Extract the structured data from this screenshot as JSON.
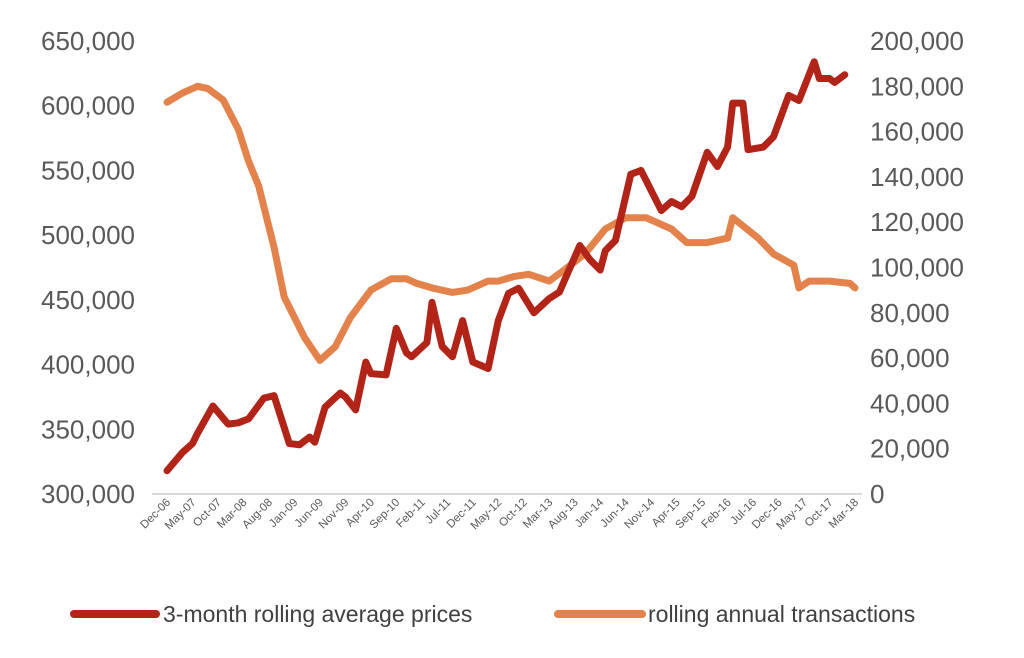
{
  "chart_data": {
    "type": "line",
    "x_tick_labels": [
      "Dec-06",
      "May-07",
      "Oct-07",
      "Mar-08",
      "Aug-08",
      "Jan-09",
      "Jun-09",
      "Nov-09",
      "Apr-10",
      "Sep-10",
      "Feb-11",
      "Jul-11",
      "Dec-11",
      "May-12",
      "Oct-12",
      "Mar-13",
      "Aug-13",
      "Jan-14",
      "Jun-14",
      "Nov-14",
      "Apr-15",
      "Sep-15",
      "Feb-16",
      "Jul-16",
      "Dec-16",
      "May-17",
      "Oct-17",
      "Mar-18"
    ],
    "x_range": [
      "2006-12",
      "2018-03"
    ],
    "y_left": {
      "min": 300000,
      "max": 650000,
      "step": 50000,
      "tick_labels": [
        "300,000",
        "350,000",
        "400,000",
        "450,000",
        "500,000",
        "550,000",
        "600,000",
        "650,000"
      ]
    },
    "y_right": {
      "min": 0,
      "max": 200000,
      "step": 20000,
      "tick_labels": [
        "0",
        "20,000",
        "40,000",
        "60,000",
        "80,000",
        "100,000",
        "120,000",
        "140,000",
        "160,000",
        "180,000",
        "200,000"
      ]
    },
    "grid": false,
    "legend_position": "bottom",
    "series": [
      {
        "name": "3-month rolling average prices",
        "axis": "left",
        "color": "#B22418",
        "points": [
          [
            "2006-12",
            318000
          ],
          [
            "2007-03",
            332000
          ],
          [
            "2007-05",
            339000
          ],
          [
            "2007-06",
            347000
          ],
          [
            "2007-09",
            368000
          ],
          [
            "2007-12",
            354000
          ],
          [
            "2008-02",
            355000
          ],
          [
            "2008-04",
            358000
          ],
          [
            "2008-07",
            374000
          ],
          [
            "2008-09",
            376000
          ],
          [
            "2008-12",
            339000
          ],
          [
            "2009-02",
            338000
          ],
          [
            "2009-04",
            344000
          ],
          [
            "2009-05",
            340000
          ],
          [
            "2009-07",
            367000
          ],
          [
            "2009-10",
            378000
          ],
          [
            "2009-11",
            375000
          ],
          [
            "2010-01",
            365000
          ],
          [
            "2010-03",
            402000
          ],
          [
            "2010-04",
            393000
          ],
          [
            "2010-07",
            392000
          ],
          [
            "2010-09",
            428000
          ],
          [
            "2010-11",
            409000
          ],
          [
            "2010-12",
            406000
          ],
          [
            "2011-03",
            417000
          ],
          [
            "2011-04",
            448000
          ],
          [
            "2011-06",
            414000
          ],
          [
            "2011-08",
            406000
          ],
          [
            "2011-10",
            434000
          ],
          [
            "2011-12",
            402000
          ],
          [
            "2012-03",
            397000
          ],
          [
            "2012-05",
            434000
          ],
          [
            "2012-07",
            455000
          ],
          [
            "2012-09",
            459000
          ],
          [
            "2012-12",
            440000
          ],
          [
            "2013-03",
            451000
          ],
          [
            "2013-05",
            456000
          ],
          [
            "2013-06",
            465000
          ],
          [
            "2013-09",
            492000
          ],
          [
            "2013-11",
            481000
          ],
          [
            "2014-01",
            473000
          ],
          [
            "2014-02",
            488000
          ],
          [
            "2014-04",
            496000
          ],
          [
            "2014-06",
            530000
          ],
          [
            "2014-07",
            547000
          ],
          [
            "2014-09",
            550000
          ],
          [
            "2015-01",
            519000
          ],
          [
            "2015-03",
            526000
          ],
          [
            "2015-05",
            522000
          ],
          [
            "2015-07",
            530000
          ],
          [
            "2015-10",
            564000
          ],
          [
            "2015-12",
            553000
          ],
          [
            "2016-02",
            568000
          ],
          [
            "2016-03",
            602000
          ],
          [
            "2016-05",
            602000
          ],
          [
            "2016-06",
            566000
          ],
          [
            "2016-09",
            568000
          ],
          [
            "2016-11",
            576000
          ],
          [
            "2017-02",
            608000
          ],
          [
            "2017-04",
            604000
          ],
          [
            "2017-07",
            634000
          ],
          [
            "2017-08",
            621000
          ],
          [
            "2017-10",
            621000
          ],
          [
            "2017-11",
            618000
          ],
          [
            "2018-01",
            624000
          ]
        ]
      },
      {
        "name": "rolling annual transactions",
        "axis": "right",
        "color": "#E3824A",
        "points": [
          [
            "2006-12",
            173000
          ],
          [
            "2007-03",
            177000
          ],
          [
            "2007-06",
            180000
          ],
          [
            "2007-08",
            179000
          ],
          [
            "2007-11",
            174000
          ],
          [
            "2008-02",
            161000
          ],
          [
            "2008-04",
            147000
          ],
          [
            "2008-06",
            136000
          ],
          [
            "2008-09",
            109000
          ],
          [
            "2008-11",
            87000
          ],
          [
            "2009-03",
            69000
          ],
          [
            "2009-06",
            59000
          ],
          [
            "2009-09",
            65000
          ],
          [
            "2009-12",
            78000
          ],
          [
            "2010-04",
            90000
          ],
          [
            "2010-08",
            95000
          ],
          [
            "2010-11",
            95000
          ],
          [
            "2011-01",
            93000
          ],
          [
            "2011-04",
            91000
          ],
          [
            "2011-08",
            89000
          ],
          [
            "2011-11",
            90000
          ],
          [
            "2012-03",
            94000
          ],
          [
            "2012-05",
            94000
          ],
          [
            "2012-08",
            96000
          ],
          [
            "2012-11",
            97000
          ],
          [
            "2013-03",
            94000
          ],
          [
            "2013-06",
            99000
          ],
          [
            "2013-10",
            106000
          ],
          [
            "2014-02",
            117000
          ],
          [
            "2014-06",
            122000
          ],
          [
            "2014-10",
            122000
          ],
          [
            "2015-03",
            117000
          ],
          [
            "2015-06",
            111000
          ],
          [
            "2015-10",
            111000
          ],
          [
            "2016-02",
            113000
          ],
          [
            "2016-03",
            122000
          ],
          [
            "2016-08",
            113000
          ],
          [
            "2016-11",
            106000
          ],
          [
            "2017-03",
            101000
          ],
          [
            "2017-04",
            91000
          ],
          [
            "2017-06",
            94000
          ],
          [
            "2017-10",
            94000
          ],
          [
            "2018-02",
            93000
          ],
          [
            "2018-03",
            91000
          ]
        ]
      }
    ]
  }
}
